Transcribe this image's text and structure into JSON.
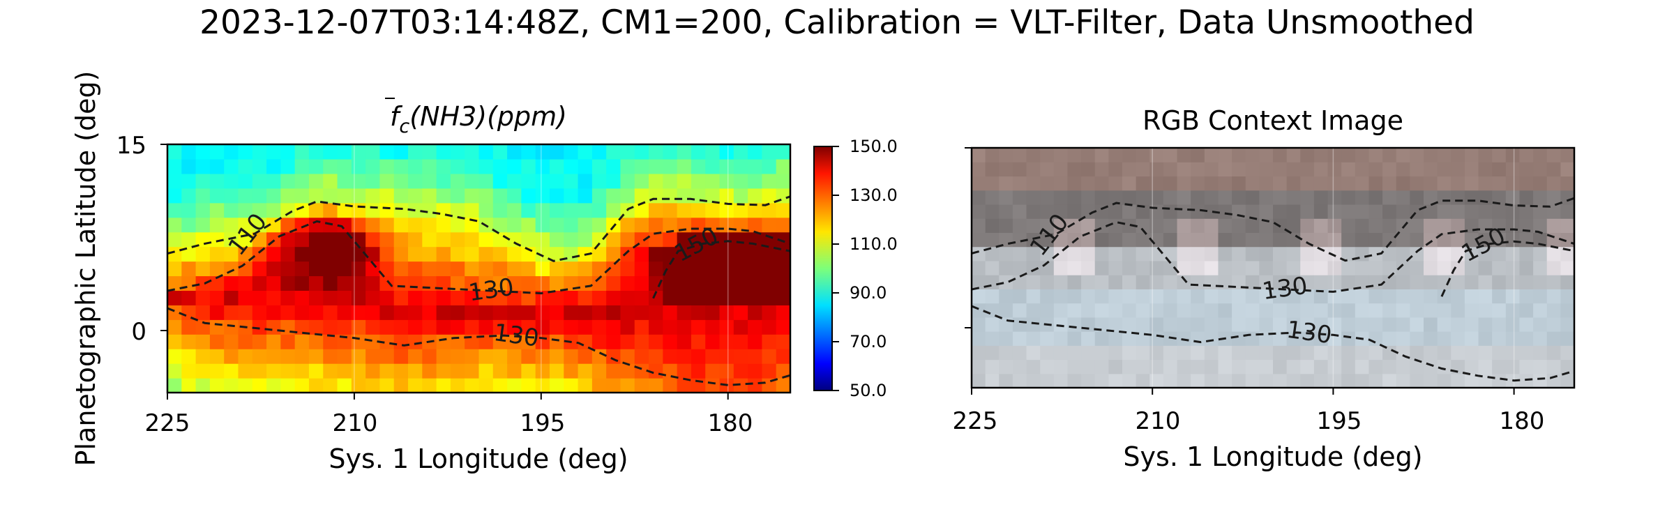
{
  "figure": {
    "suptitle": "2023-12-07T03:14:48Z, CM1=200, Calibration = VLT-Filter, Data Unsmoothed",
    "ylabel": "Planetographic Latitude (deg)"
  },
  "panels": {
    "left": {
      "title_main": "f",
      "title_sub": "c",
      "title_rest": "(NH3)(ppm)",
      "xlabel": "Sys. 1 Longitude (deg)",
      "xticks": [
        "225",
        "210",
        "195",
        "180"
      ],
      "yticks": [
        "15",
        "0"
      ],
      "colorbar_ticks": [
        "150.0",
        "130.0",
        "110.0",
        "90.0",
        "70.0",
        "50.0"
      ],
      "colormap": "jet"
    },
    "right": {
      "title": "RGB Context Image",
      "xlabel": "Sys. 1 Longitude (deg)",
      "xticks": [
        "225",
        "210",
        "195",
        "180"
      ]
    }
  },
  "chart_data": [
    {
      "type": "heatmap",
      "title": "f̄c(NH3)(ppm)",
      "xlabel": "Sys. 1 Longitude (deg)",
      "ylabel": "Planetographic Latitude (deg)",
      "xlim": [
        225,
        175
      ],
      "ylim": [
        -5,
        15
      ],
      "colorbar": {
        "min": 50,
        "max": 150,
        "ticks": [
          150,
          130,
          110,
          90,
          70,
          50
        ],
        "colormap": "jet"
      },
      "grid": true,
      "description": "Ammonia abundance: ~90-100 ppm north of 10N; ~120-135 ppm bands; a >150 ppm plume near 212E 5-8N and a large >150 ppm region 175-187E 1-7N.",
      "contours": [
        {
          "level": 110,
          "lon": [
            225,
            222,
            218,
            215,
            213,
            210,
            206,
            203,
            200,
            197,
            194,
            191,
            188,
            186,
            183,
            180,
            177,
            175
          ],
          "lat": [
            6.2,
            7.0,
            7.8,
            9.6,
            10.4,
            10.0,
            9.8,
            9.4,
            8.8,
            7.0,
            5.6,
            6.2,
            9.8,
            10.6,
            10.6,
            10.2,
            10.1,
            10.8
          ]
        },
        {
          "level": 130,
          "lon": [
            225,
            222,
            219,
            216,
            213,
            211,
            209,
            207,
            203,
            199,
            195,
            191,
            188,
            186,
            183,
            180,
            178,
            175
          ],
          "lat": [
            3.2,
            3.8,
            5.2,
            7.6,
            8.8,
            8.4,
            6.0,
            3.6,
            3.4,
            3.2,
            3.0,
            3.6,
            6.4,
            7.8,
            8.2,
            8.2,
            8.0,
            7.0
          ]
        },
        {
          "level": 130,
          "lon": [
            225,
            222,
            218,
            214,
            210,
            206,
            202,
            198,
            195,
            192,
            189,
            186,
            183,
            180,
            177,
            175
          ],
          "lat": [
            1.8,
            0.6,
            0.2,
            -0.2,
            -0.6,
            -1.2,
            -0.6,
            -0.4,
            -0.6,
            -1.0,
            -2.4,
            -3.4,
            -4.0,
            -4.4,
            -4.2,
            -3.6
          ]
        },
        {
          "level": 150,
          "lon": [
            186,
            185,
            184,
            182,
            180,
            178,
            176,
            175
          ],
          "lat": [
            2.6,
            4.8,
            6.4,
            7.0,
            7.2,
            7.0,
            6.6,
            6.4
          ]
        }
      ]
    },
    {
      "type": "heatmap",
      "title": "RGB Context Image",
      "xlabel": "Sys. 1 Longitude (deg)",
      "xlim": [
        225,
        175
      ],
      "ylim": [
        -5,
        15
      ],
      "description": "Pixelated RGB image of Jupiter's bands: brownish belt north of 8N, bluish-grey and white zones below, with the same contours overlaid."
    }
  ]
}
